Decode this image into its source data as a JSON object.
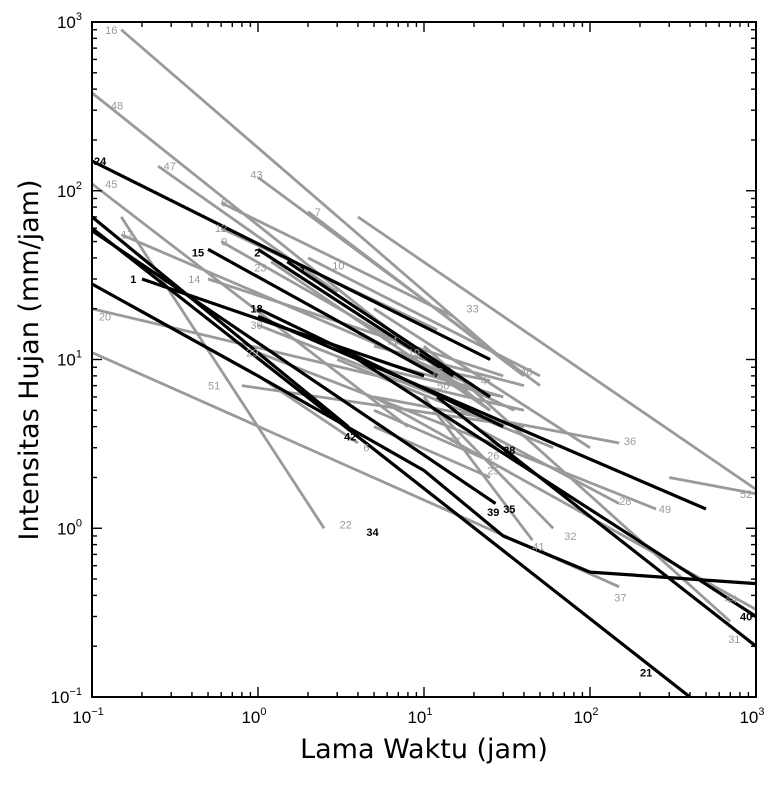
{
  "chart_data": {
    "type": "line",
    "title": "",
    "xlabel": "Lama Waktu (jam)",
    "ylabel": "Intensitas Hujan (mm/jam)",
    "x_scale": "log",
    "y_scale": "log",
    "xlim": [
      0.1,
      1000
    ],
    "ylim": [
      0.1,
      1000
    ],
    "grid": false,
    "x_ticks": [
      {
        "base": "10",
        "exp": "−1"
      },
      {
        "base": "10",
        "exp": "0"
      },
      {
        "base": "10",
        "exp": "1"
      },
      {
        "base": "10",
        "exp": "2"
      },
      {
        "base": "10",
        "exp": "3"
      }
    ],
    "y_ticks": [
      {
        "base": "10",
        "exp": "−1"
      },
      {
        "base": "10",
        "exp": "0"
      },
      {
        "base": "10",
        "exp": "1"
      },
      {
        "base": "10",
        "exp": "2"
      },
      {
        "base": "10",
        "exp": "3"
      }
    ],
    "colors": {
      "gray": "#9a9a9a",
      "black": "#000000"
    },
    "series": [
      {
        "label": "16",
        "color": "gray",
        "points": [
          [
            0.15,
            900
          ],
          [
            30,
            10
          ]
        ],
        "label_at": [
          0.12,
          900
        ]
      },
      {
        "label": "48",
        "color": "gray",
        "points": [
          [
            0.1,
            380
          ],
          [
            25,
            5
          ]
        ],
        "label_at": [
          0.13,
          320
        ]
      },
      {
        "label": "24",
        "color": "black",
        "points": [
          [
            0.1,
            150
          ],
          [
            25,
            10
          ]
        ],
        "label_at": [
          0.1,
          150
        ]
      },
      {
        "label": "47",
        "color": "gray",
        "points": [
          [
            0.25,
            140
          ],
          [
            3,
            25
          ]
        ],
        "label_at": [
          0.27,
          140
        ]
      },
      {
        "label": "45",
        "color": "gray",
        "points": [
          [
            0.1,
            110
          ],
          [
            8,
            4
          ]
        ],
        "label_at": [
          0.12,
          110
        ]
      },
      {
        "label": "43",
        "color": "gray",
        "points": [
          [
            1,
            120
          ],
          [
            50,
            7
          ]
        ],
        "label_at": [
          0.9,
          125
        ]
      },
      {
        "label": "8",
        "color": "gray",
        "points": [
          [
            0.6,
            85
          ],
          [
            15,
            18
          ]
        ],
        "label_at": [
          0.6,
          85
        ]
      },
      {
        "label": "12",
        "color": "gray",
        "points": [
          [
            0.6,
            60
          ],
          [
            12,
            15
          ]
        ],
        "label_at": [
          0.55,
          60
        ]
      },
      {
        "label": "9",
        "color": "gray",
        "points": [
          [
            0.6,
            50
          ],
          [
            20,
            7
          ]
        ],
        "label_at": [
          0.6,
          50
        ]
      },
      {
        "label": "17",
        "color": "gray",
        "points": [
          [
            0.15,
            55
          ],
          [
            20,
            7
          ]
        ],
        "label_at": [
          0.15,
          55
        ]
      },
      {
        "label": "2",
        "color": "black",
        "points": [
          [
            1,
            45
          ],
          [
            15,
            8
          ]
        ],
        "label_at": [
          0.95,
          43
        ]
      },
      {
        "label": "15",
        "color": "black",
        "points": [
          [
            0.5,
            45
          ],
          [
            12,
            8
          ]
        ],
        "label_at": [
          0.4,
          43
        ]
      },
      {
        "label": "23",
        "color": "gray",
        "points": [
          [
            1.2,
            38
          ],
          [
            25,
            5
          ]
        ],
        "label_at": [
          0.95,
          35
        ]
      },
      {
        "label": "3",
        "color": "black",
        "points": [
          [
            1.5,
            38
          ],
          [
            25,
            6
          ]
        ],
        "label_at": [
          1.75,
          35
        ]
      },
      {
        "label": "10",
        "color": "gray",
        "points": [
          [
            2,
            40
          ],
          [
            50,
            8
          ]
        ],
        "label_at": [
          2.8,
          36
        ]
      },
      {
        "label": "7",
        "color": "gray",
        "points": [
          [
            2,
            75
          ],
          [
            40,
            8
          ]
        ],
        "label_at": [
          2.2,
          75
        ]
      },
      {
        "label": "14",
        "color": "gray",
        "points": [
          [
            0.5,
            30
          ],
          [
            30,
            8
          ]
        ],
        "label_at": [
          0.38,
          30
        ]
      },
      {
        "label": "1",
        "color": "black",
        "points": [
          [
            0.2,
            30
          ],
          [
            10,
            8
          ]
        ],
        "label_at": [
          0.17,
          30
        ]
      },
      {
        "label": "33",
        "color": "gray",
        "points": [
          [
            4,
            70
          ],
          [
            1000,
            1.7
          ]
        ],
        "label_at": [
          18,
          20
        ]
      },
      {
        "label": "18",
        "color": "black",
        "points": [
          [
            1,
            20
          ],
          [
            30,
            4
          ]
        ],
        "label_at": [
          0.9,
          20
        ]
      },
      {
        "label": "30",
        "color": "gray",
        "points": [
          [
            1,
            16
          ],
          [
            20,
            5
          ]
        ],
        "label_at": [
          0.9,
          16
        ]
      },
      {
        "label": "20",
        "color": "gray",
        "points": [
          [
            0.1,
            20
          ],
          [
            40,
            5
          ]
        ],
        "label_at": [
          0.11,
          18
        ]
      },
      {
        "label": "11",
        "color": "gray",
        "points": [
          [
            4,
            14
          ],
          [
            35,
            5
          ]
        ],
        "label_at": [
          6,
          13
        ]
      },
      {
        "label": "19",
        "color": "gray",
        "points": [
          [
            5,
            12
          ],
          [
            40,
            7
          ]
        ],
        "label_at": [
          8,
          11
        ]
      },
      {
        "label": "29",
        "color": "gray",
        "points": [
          [
            1,
            11
          ],
          [
            30,
            3
          ]
        ],
        "label_at": [
          0.85,
          11
        ]
      },
      {
        "label": "13",
        "color": "gray",
        "points": [
          [
            5,
            10
          ],
          [
            30,
            6
          ]
        ],
        "label_at": [
          11,
          8.5
        ]
      },
      {
        "label": "4",
        "color": "gray",
        "points": [
          [
            10,
            9
          ],
          [
            25,
            7.5
          ]
        ],
        "label_at": [
          22,
          7.5
        ]
      },
      {
        "label": "46",
        "color": "gray",
        "points": [
          [
            5,
            20
          ],
          [
            100,
            3
          ]
        ],
        "label_at": [
          38,
          8.5
        ]
      },
      {
        "label": "50",
        "color": "gray",
        "points": [
          [
            5,
            9
          ],
          [
            30,
            6
          ]
        ],
        "label_at": [
          12,
          7
        ]
      },
      {
        "label": "51",
        "color": "gray",
        "points": [
          [
            0.8,
            7
          ],
          [
            40,
            4
          ]
        ],
        "label_at": [
          0.5,
          7
        ]
      },
      {
        "label": "42",
        "color": "black",
        "points": [
          [
            0.1,
            70
          ],
          [
            3.5,
            4
          ]
        ],
        "label_at": [
          3.3,
          3.5
        ]
      },
      {
        "label": "6",
        "color": "gray",
        "points": [
          [
            1,
            8
          ],
          [
            4,
            3.2
          ]
        ],
        "label_at": [
          4.3,
          3
        ]
      },
      {
        "label": "36",
        "color": "gray",
        "points": [
          [
            5,
            6
          ],
          [
            150,
            3.2
          ]
        ],
        "label_at": [
          160,
          3.3
        ]
      },
      {
        "label": "27",
        "color": "gray",
        "points": [
          [
            3,
            10
          ],
          [
            60,
            3
          ]
        ],
        "label_at": [
          14,
          3.3
        ]
      },
      {
        "label": "22",
        "color": "gray",
        "points": [
          [
            0.15,
            70
          ],
          [
            2.5,
            1
          ]
        ],
        "label_at": [
          3.1,
          1.05
        ]
      },
      {
        "label": "39",
        "color": "black",
        "points": [
          [
            0.1,
            58
          ],
          [
            27,
            1.4
          ]
        ],
        "label_at": [
          24,
          1.25
        ]
      },
      {
        "label": "34",
        "color": "black",
        "points": [
          [
            0.1,
            28
          ],
          [
            1,
            8
          ],
          [
            10,
            2.2
          ],
          [
            30,
            0.9
          ],
          [
            100,
            0.55
          ],
          [
            1000,
            0.47
          ]
        ],
        "label_at": [
          4.5,
          0.95
        ]
      },
      {
        "label": "41",
        "color": "gray",
        "points": [
          [
            10,
            6
          ],
          [
            45,
            0.85
          ]
        ],
        "label_at": [
          45,
          0.78
        ]
      },
      {
        "label": "32",
        "color": "gray",
        "points": [
          [
            12,
            5
          ],
          [
            60,
            1
          ]
        ],
        "label_at": [
          70,
          0.9
        ]
      },
      {
        "label": "26",
        "color": "gray",
        "points": [
          [
            5,
            5
          ],
          [
            25,
            2.5
          ]
        ],
        "label_at": [
          24,
          2.7
        ]
      },
      {
        "label": "25",
        "color": "gray",
        "points": [
          [
            5,
            4
          ],
          [
            25,
            2
          ]
        ],
        "label_at": [
          24,
          2.2
        ]
      },
      {
        "label": "28",
        "color": "gray",
        "points": [
          [
            20,
            4
          ],
          [
            150,
            1.4
          ]
        ],
        "label_at": [
          150,
          1.45
        ]
      },
      {
        "label": "49",
        "color": "gray",
        "points": [
          [
            20,
            3.5
          ],
          [
            250,
            1.3
          ]
        ],
        "label_at": [
          260,
          1.3
        ]
      },
      {
        "label": "52",
        "color": "gray",
        "points": [
          [
            300,
            2
          ],
          [
            1000,
            1.6
          ]
        ],
        "label_at": [
          850,
          1.6
        ]
      },
      {
        "label": "37",
        "color": "gray",
        "points": [
          [
            0.1,
            11
          ],
          [
            150,
            0.45
          ]
        ],
        "label_at": [
          140,
          0.39
        ]
      },
      {
        "label": "44",
        "color": "gray",
        "points": [
          [
            5,
            6
          ],
          [
            1000,
            0.33
          ]
        ],
        "label_at": [
          650,
          0.38
        ]
      },
      {
        "label": "40",
        "color": "black",
        "points": [
          [
            3,
            12
          ],
          [
            1000,
            0.3
          ]
        ],
        "label_at": [
          850,
          0.3
        ]
      },
      {
        "label": "31",
        "color": "gray",
        "points": [
          [
            10,
            12
          ],
          [
            700,
            0.28
          ]
        ],
        "label_at": [
          680,
          0.22
        ]
      },
      {
        "label": "35",
        "color": "black",
        "points": [
          [
            12,
            6
          ],
          [
            1000,
            0.2
          ]
        ],
        "label_at": [
          30,
          1.3
        ]
      },
      {
        "label": "38",
        "color": "black",
        "points": [
          [
            1,
            18
          ],
          [
            500,
            1.3
          ]
        ],
        "label_at": [
          30,
          2.9
        ]
      },
      {
        "label": "21",
        "color": "black",
        "points": [
          [
            0.1,
            60
          ],
          [
            400,
            0.1
          ]
        ],
        "label_at": [
          200,
          0.14
        ]
      }
    ]
  }
}
